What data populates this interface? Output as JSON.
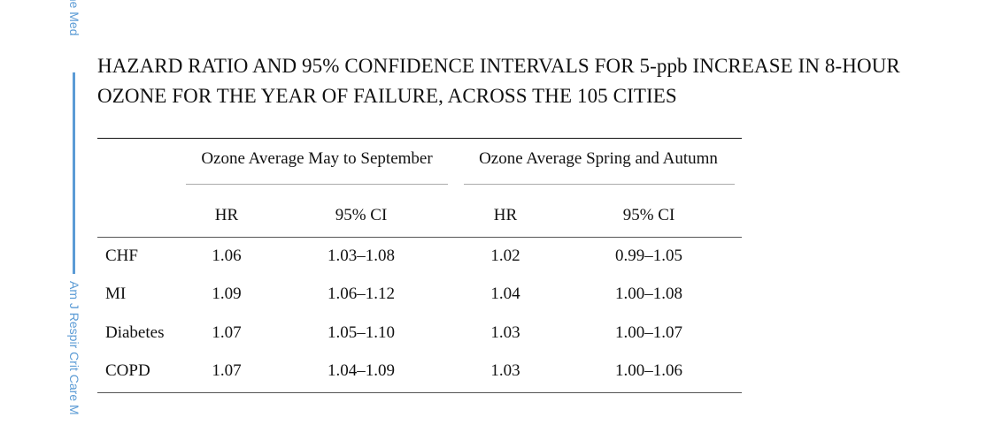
{
  "side_rail": {
    "top_text": "ane Med",
    "bottom_text": "Am J Respir Crit Care M"
  },
  "table": {
    "title_lines": [
      "HAZARD RATIO AND 95% CONFIDENCE INTERVALS FOR 5-ppb INCREASE IN 8-HOUR",
      "OZONE FOR THE YEAR OF FAILURE, ACROSS THE 105 CITIES"
    ],
    "group_headers": [
      "Ozone Average May to September",
      "Ozone Average Spring and Autumn"
    ],
    "column_headers": [
      "HR",
      "95% CI",
      "HR",
      "95% CI"
    ],
    "rows": [
      {
        "label": "CHF",
        "hr1": "1.06",
        "ci1": "1.03–1.08",
        "hr2": "1.02",
        "ci2": "0.99–1.05"
      },
      {
        "label": "MI",
        "hr1": "1.09",
        "ci1": "1.06–1.12",
        "hr2": "1.04",
        "ci2": "1.00–1.08"
      },
      {
        "label": "Diabetes",
        "hr1": "1.07",
        "ci1": "1.05–1.10",
        "hr2": "1.03",
        "ci2": "1.00–1.07"
      },
      {
        "label": "COPD",
        "hr1": "1.07",
        "ci1": "1.04–1.09",
        "hr2": "1.03",
        "ci2": "1.00–1.06"
      }
    ]
  }
}
